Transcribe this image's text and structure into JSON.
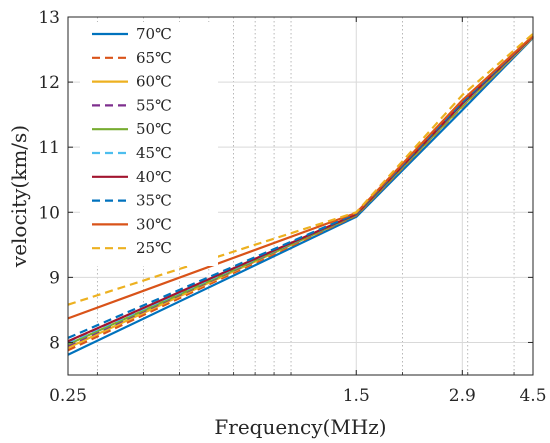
{
  "chart_data": {
    "type": "line",
    "xlabel": "Frequency(MHz)",
    "ylabel": "velocity(km/s)",
    "x_scale": "log",
    "xlim": [
      0.25,
      4.5
    ],
    "ylim": [
      7.5,
      13
    ],
    "x_ticks": [
      0.25,
      1.5,
      2.9,
      4.5
    ],
    "x_tick_labels": [
      "0.25",
      "1.5",
      "2.9",
      "4.5"
    ],
    "y_ticks": [
      8,
      9,
      10,
      11,
      12,
      13
    ],
    "y_tick_labels": [
      "8",
      "9",
      "10",
      "11",
      "12",
      "13"
    ],
    "grid": true,
    "legend_position": "top-left",
    "x": [
      0.25,
      1.5,
      2.9,
      4.5
    ],
    "series": [
      {
        "name": "70℃",
        "color": "#0072BD",
        "dash": "solid",
        "values": [
          7.81,
          9.93,
          11.57,
          12.68
        ]
      },
      {
        "name": "65℃",
        "color": "#D95319",
        "dash": "dashed",
        "values": [
          7.88,
          9.95,
          11.62,
          12.69
        ]
      },
      {
        "name": "60℃",
        "color": "#EDB120",
        "dash": "solid",
        "values": [
          7.92,
          9.96,
          11.63,
          12.69
        ]
      },
      {
        "name": "55℃",
        "color": "#7E2F8E",
        "dash": "dashed",
        "values": [
          7.95,
          9.96,
          11.64,
          12.7
        ]
      },
      {
        "name": "50℃",
        "color": "#77AC30",
        "dash": "solid",
        "values": [
          7.97,
          9.96,
          11.64,
          12.7
        ]
      },
      {
        "name": "45℃",
        "color": "#4DBEEE",
        "dash": "dashed",
        "values": [
          8.0,
          9.97,
          11.66,
          12.7
        ]
      },
      {
        "name": "40℃",
        "color": "#A2142F",
        "dash": "solid",
        "values": [
          8.02,
          9.97,
          11.67,
          12.7
        ]
      },
      {
        "name": "35℃",
        "color": "#0072BD",
        "dash": "dashed",
        "values": [
          8.07,
          9.98,
          11.69,
          12.71
        ]
      },
      {
        "name": "30℃",
        "color": "#D95319",
        "dash": "solid",
        "values": [
          8.37,
          9.99,
          11.72,
          12.71
        ]
      },
      {
        "name": "25℃",
        "color": "#EDB120",
        "dash": "dashed",
        "values": [
          8.58,
          10.0,
          11.8,
          12.74
        ]
      }
    ]
  }
}
